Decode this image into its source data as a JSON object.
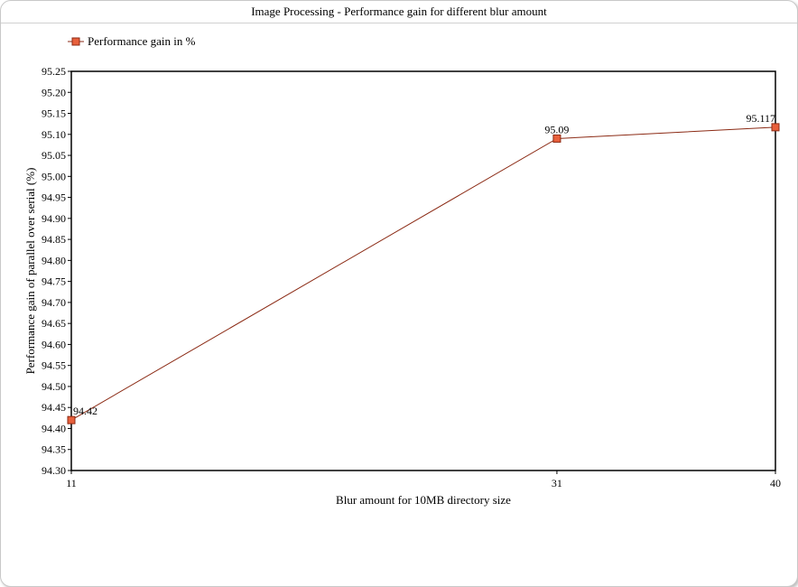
{
  "window": {
    "title": "Image Processing - Performance gain for different blur amount"
  },
  "chart_data": {
    "type": "line",
    "title": "Image Processing - Performance gain for different blur amount",
    "xlabel": "Blur amount for 10MB directory size",
    "ylabel": "Performance gain of parallel over serial (%)",
    "x": [
      11,
      31,
      40
    ],
    "x_tick_labels": [
      "11",
      "31",
      "40"
    ],
    "xlim": [
      11,
      40
    ],
    "ylim": [
      94.3,
      95.25
    ],
    "y_ticks": [
      "94.30",
      "94.35",
      "94.40",
      "94.45",
      "94.50",
      "94.55",
      "94.60",
      "94.65",
      "94.70",
      "94.75",
      "94.80",
      "94.85",
      "94.90",
      "94.95",
      "95.00",
      "95.05",
      "95.10",
      "95.15",
      "95.20",
      "95.25"
    ],
    "series": [
      {
        "name": "Performance gain in %",
        "values": [
          94.42,
          95.09,
          95.117
        ],
        "data_labels": [
          "94.42",
          "95.09",
          "95.117"
        ],
        "line_color": "#8b2a14",
        "marker_color": "#e8603c"
      }
    ],
    "grid": false,
    "legend_position": "top-left"
  }
}
